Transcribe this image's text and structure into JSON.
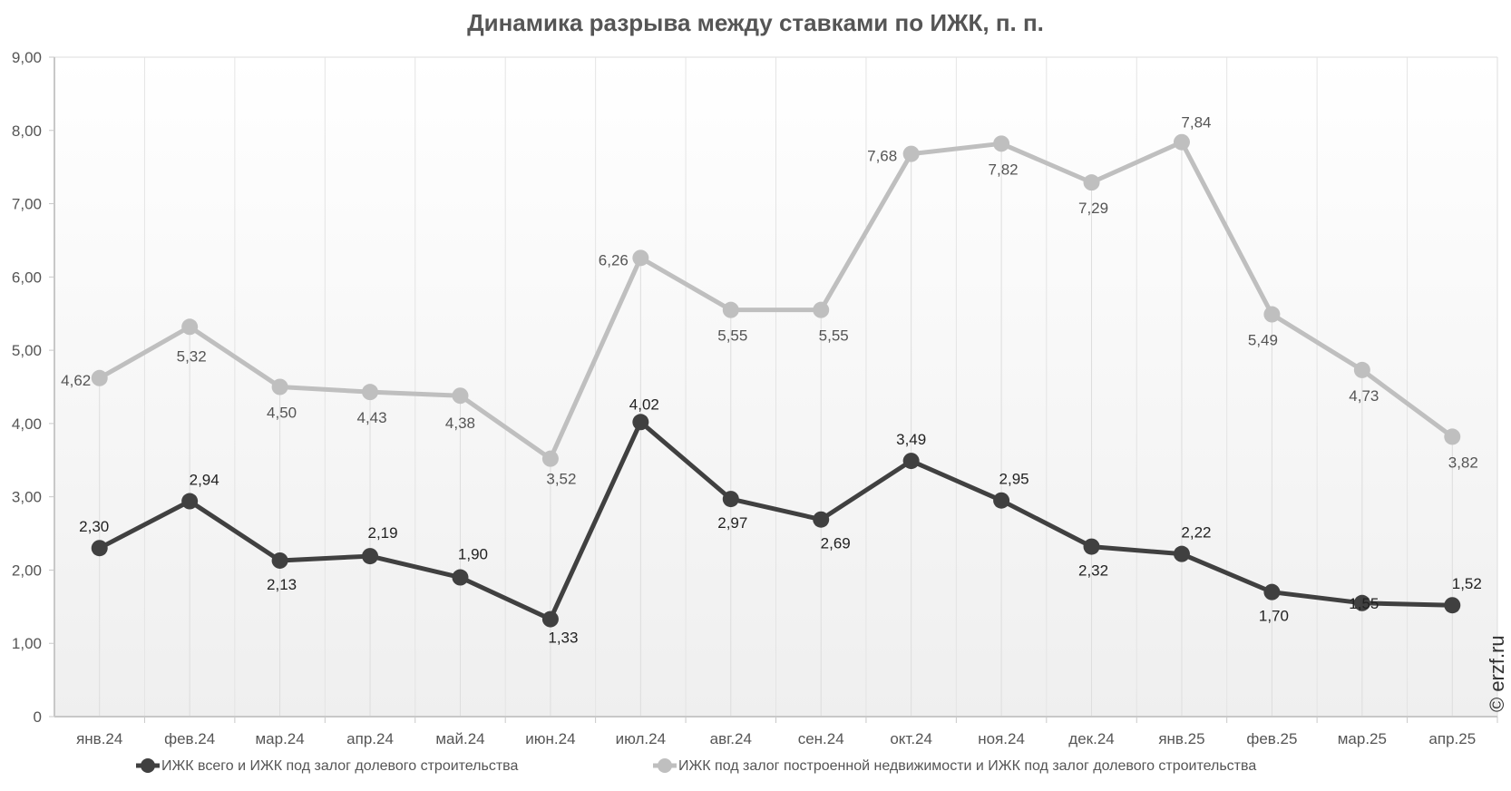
{
  "chart_data": {
    "type": "line",
    "title": "Динамика разрыва между ставками по ИЖК, п. п.",
    "categories": [
      "янв.24",
      "фев.24",
      "мар.24",
      "апр.24",
      "май.24",
      "июн.24",
      "июл.24",
      "авг.24",
      "сен.24",
      "окт.24",
      "ноя.24",
      "дек.24",
      "янв.25",
      "фев.25",
      "мар.25",
      "апр.25"
    ],
    "ylim": [
      0,
      9
    ],
    "yticks": [
      "0",
      "1,00",
      "2,00",
      "3,00",
      "4,00",
      "5,00",
      "6,00",
      "7,00",
      "8,00",
      "9,00"
    ],
    "grid": "vertical",
    "legend": "bottom",
    "series": [
      {
        "name": "ИЖК всего  и  ИЖК под залог долевого строительства",
        "color": "#404040",
        "values": [
          2.3,
          2.94,
          2.13,
          2.19,
          1.9,
          1.33,
          4.02,
          2.97,
          2.69,
          3.49,
          2.95,
          2.32,
          2.22,
          1.7,
          1.55,
          1.52
        ],
        "labels": [
          "2,30",
          "2,94",
          "2,13",
          "2,19",
          "1,90",
          "1,33",
          "4,02",
          "2,97",
          "2,69",
          "3,49",
          "2,95",
          "2,32",
          "2,22",
          "1,70",
          "1,55",
          "1,52"
        ]
      },
      {
        "name": "ИЖК под залог построенной недвижимости  и  ИЖК под залог долевого строительства",
        "color": "#bfbfbf",
        "values": [
          4.62,
          5.32,
          4.5,
          4.43,
          4.38,
          3.52,
          6.26,
          5.55,
          5.55,
          7.68,
          7.82,
          7.29,
          7.84,
          5.49,
          4.73,
          3.82
        ],
        "labels": [
          "4,62",
          "5,32",
          "4,50",
          "4,43",
          "4,38",
          "3,52",
          "6,26",
          "5,55",
          "5,55",
          "7,68",
          "7,82",
          "7,29",
          "7,84",
          "5,49",
          "4,73",
          "3,82"
        ]
      }
    ]
  },
  "watermark": "© erzf.ru"
}
